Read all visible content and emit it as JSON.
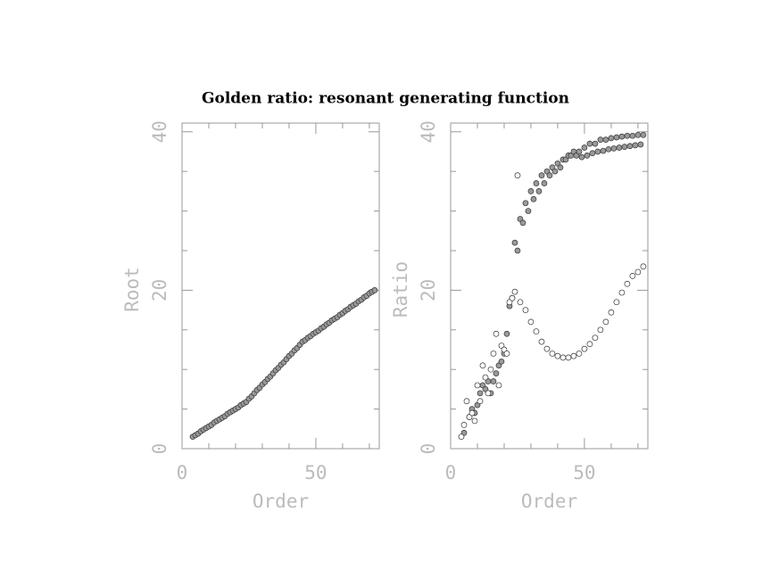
{
  "title": "Golden ratio: resonant generating function",
  "chart_data": [
    {
      "type": "scatter",
      "x_label": "Order",
      "y_label": "Root",
      "xlim": [
        0,
        73.7
      ],
      "ylim": [
        0,
        41.1
      ],
      "xticks": [
        0,
        50
      ],
      "yticks": [
        0,
        20,
        40
      ],
      "xminorticks": [
        10,
        20,
        30,
        40,
        60,
        70
      ],
      "yminorticks": [
        5,
        10,
        15,
        25,
        30,
        35
      ],
      "series": [
        {
          "color": "#999999",
          "x": [
            4,
            5,
            6,
            7,
            8,
            9,
            10,
            11,
            12,
            13,
            14,
            15,
            16,
            17,
            18,
            19,
            20,
            21,
            22,
            23,
            24,
            25,
            26,
            27,
            28,
            29,
            30,
            31,
            32,
            33,
            34,
            35,
            36,
            37,
            38,
            39,
            40,
            41,
            42,
            43,
            44,
            45,
            46,
            47,
            48,
            49,
            50,
            51,
            52,
            53,
            54,
            55,
            56,
            57,
            58,
            59,
            60,
            61,
            62,
            63,
            64,
            65,
            66,
            67,
            68,
            69,
            70,
            71,
            72
          ],
          "values": [
            1.5,
            1.7,
            1.9,
            2.2,
            2.4,
            2.6,
            2.8,
            3.0,
            3.3,
            3.5,
            3.7,
            3.9,
            4.1,
            4.4,
            4.6,
            4.8,
            5.0,
            5.2,
            5.5,
            5.7,
            5.9,
            6.3,
            6.6,
            7.0,
            7.4,
            7.7,
            8.1,
            8.4,
            8.8,
            9.1,
            9.5,
            9.9,
            10.2,
            10.6,
            10.9,
            11.3,
            11.7,
            12.0,
            12.4,
            12.7,
            13.1,
            13.5,
            13.7,
            14.0,
            14.2,
            14.5,
            14.7,
            14.9,
            15.2,
            15.4,
            15.7,
            15.9,
            16.2,
            16.4,
            16.6,
            16.9,
            17.1,
            17.4,
            17.6,
            17.9,
            18.1,
            18.3,
            18.6,
            18.8,
            19.1,
            19.3,
            19.6,
            19.8,
            20.0
          ]
        }
      ]
    },
    {
      "type": "scatter",
      "x_label": "Order",
      "y_label": "Ratio",
      "xlim": [
        0,
        73.7
      ],
      "ylim": [
        0,
        41.1
      ],
      "xticks": [
        0,
        50
      ],
      "yticks": [
        0,
        20,
        40
      ],
      "xminorticks": [
        10,
        20,
        30,
        40,
        60,
        70
      ],
      "yminorticks": [
        5,
        10,
        15,
        25,
        30,
        35
      ],
      "series": [
        {
          "color": "#999999",
          "x": [
            5,
            7,
            8,
            9,
            10,
            11,
            12,
            13,
            14,
            15,
            16,
            17,
            18,
            19,
            20,
            21,
            22,
            23,
            24,
            25,
            26,
            27,
            28,
            29,
            30,
            31,
            32,
            33,
            34,
            35,
            36,
            37,
            38,
            39,
            40,
            41,
            42,
            43,
            44,
            45,
            46,
            47,
            48,
            50,
            52,
            54,
            56,
            58,
            60,
            62,
            64,
            66,
            68,
            70,
            72,
            49,
            51,
            53,
            55,
            57,
            59,
            61,
            63,
            65,
            67,
            69,
            71
          ],
          "values": [
            2,
            4,
            5,
            4.5,
            5.5,
            7,
            8,
            7.5,
            8.5,
            7,
            8.5,
            9.5,
            10.5,
            11,
            12,
            14.5,
            18,
            19,
            26,
            25,
            29,
            28.5,
            31,
            30,
            32.5,
            31.5,
            33.5,
            32.5,
            34.5,
            33.5,
            35,
            34.5,
            35.5,
            35,
            36,
            35.5,
            36.5,
            36.5,
            37,
            37,
            37.5,
            37,
            37.5,
            38,
            38.5,
            38.5,
            39,
            39,
            39.2,
            39.3,
            39.4,
            39.5,
            39.5,
            39.6,
            39.6,
            36.8,
            37.0,
            37.3,
            37.5,
            37.6,
            37.8,
            37.9,
            38.0,
            38.1,
            38.2,
            38.3,
            38.4
          ]
        },
        {
          "color": "#ffffff",
          "x": [
            4,
            5,
            6,
            7,
            8,
            9,
            10,
            11,
            12,
            13,
            14,
            15,
            16,
            17,
            18,
            19,
            20,
            21,
            22,
            23,
            24,
            25,
            26,
            28,
            30,
            32,
            34,
            36,
            38,
            40,
            42,
            44,
            46,
            48,
            50,
            52,
            54,
            56,
            58,
            60,
            62,
            64,
            66,
            68,
            70,
            72
          ],
          "values": [
            1.5,
            3,
            6,
            4,
            4.5,
            3.5,
            8,
            6,
            10.5,
            9,
            7,
            10,
            12,
            14.5,
            8,
            13,
            12.5,
            12,
            18.5,
            19,
            19.8,
            34.5,
            18.5,
            17.5,
            16,
            14.8,
            13.5,
            12.6,
            12.0,
            11.7,
            11.5,
            11.5,
            11.7,
            12.0,
            12.6,
            13.2,
            14.0,
            15.0,
            16.0,
            17.2,
            18.5,
            19.7,
            20.8,
            21.8,
            22.3,
            23.0
          ]
        }
      ]
    }
  ]
}
